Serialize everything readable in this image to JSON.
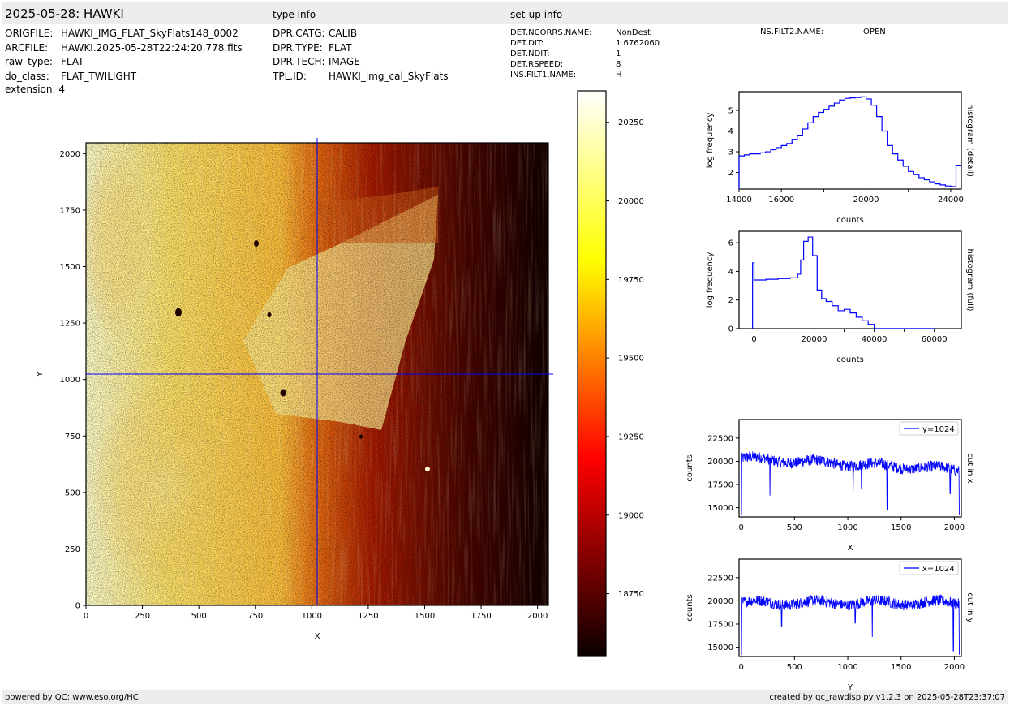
{
  "header": {
    "title": "2025-05-28: HAWKI",
    "type_info_title": "type info",
    "setup_info_title": "set-up info"
  },
  "file_info": [
    {
      "key": "ORIGFILE:",
      "value": "HAWKI_IMG_FLAT_SkyFlats148_0002"
    },
    {
      "key": "ARCFILE:",
      "value": "HAWKI.2025-05-28T22:24:20.778.fits"
    },
    {
      "key": "raw_type:",
      "value": "FLAT"
    },
    {
      "key": "do_class:",
      "value": "FLAT_TWILIGHT"
    },
    {
      "key": "extension:",
      "value": "4"
    }
  ],
  "type_info": [
    {
      "key": "DPR.CATG:",
      "value": "CALIB"
    },
    {
      "key": "DPR.TYPE:",
      "value": "FLAT"
    },
    {
      "key": "DPR.TECH:",
      "value": "IMAGE"
    },
    {
      "key": "TPL.ID:",
      "value": "HAWKI_img_cal_SkyFlats"
    }
  ],
  "setup_info": [
    {
      "key": "DET.NCORRS.NAME:",
      "value": "NonDest"
    },
    {
      "key": "DET.DIT:",
      "value": "1.6762060"
    },
    {
      "key": "DET.NDIT:",
      "value": "1"
    },
    {
      "key": "DET.RSPEED:",
      "value": "8"
    },
    {
      "key": "INS.FILT1.NAME:",
      "value": "H"
    }
  ],
  "setup_info_2": [
    {
      "key": "INS.FILT2.NAME:",
      "value": "OPEN"
    }
  ],
  "footer": {
    "left": "powered by QC: www.eso.org/HC",
    "right": "created by qc_rawdisp.py v1.2.3 on 2025-05-28T23:37:07"
  },
  "colors": {
    "series": "#0000ff",
    "crosshair": "#0000ff",
    "band": "#ececec"
  },
  "chart_data": [
    {
      "type": "heatmap",
      "xlabel": "X",
      "ylabel": "Y",
      "xlim": [
        0,
        2048
      ],
      "ylim": [
        0,
        2048
      ],
      "xticks": [
        0,
        250,
        500,
        750,
        1000,
        1250,
        1500,
        1750,
        2000
      ],
      "yticks": [
        0,
        250,
        500,
        750,
        1000,
        1250,
        1500,
        1750,
        2000
      ],
      "crosshair": {
        "x": 1024,
        "y": 1024
      },
      "colormap": "hot",
      "colorbar": {
        "range": [
          18550,
          20350
        ],
        "ticks": [
          18750,
          19000,
          19250,
          19500,
          19750,
          20000,
          20250
        ]
      }
    },
    {
      "type": "line",
      "step": true,
      "xlabel": "counts",
      "ylabel": "log frequency",
      "side_label": "histogram (detail)",
      "xlim": [
        14000,
        24500
      ],
      "ylim": [
        1.2,
        5.9
      ],
      "xticks": [
        14000,
        16000,
        20000,
        24000
      ],
      "xtick_minor": [
        18000,
        22000
      ],
      "yticks": [
        2,
        3,
        4,
        5
      ],
      "x": [
        14000,
        14250,
        14500,
        14750,
        15000,
        15250,
        15500,
        15750,
        16000,
        16250,
        16500,
        16750,
        17000,
        17250,
        17500,
        17750,
        18000,
        18250,
        18500,
        18750,
        19000,
        19250,
        19500,
        19750,
        20000,
        20250,
        20500,
        20750,
        21000,
        21250,
        21500,
        21750,
        22000,
        22250,
        22500,
        22750,
        23000,
        23250,
        23500,
        23750,
        24000,
        24250,
        24500
      ],
      "y": [
        2.8,
        2.85,
        2.9,
        2.9,
        2.95,
        3.0,
        3.1,
        3.2,
        3.3,
        3.4,
        3.6,
        3.8,
        4.1,
        4.4,
        4.7,
        4.9,
        5.05,
        5.2,
        5.35,
        5.5,
        5.58,
        5.6,
        5.62,
        5.65,
        5.55,
        5.25,
        4.7,
        4.0,
        3.3,
        2.9,
        2.6,
        2.3,
        2.05,
        1.9,
        1.75,
        1.65,
        1.55,
        1.45,
        1.4,
        1.35,
        1.32,
        2.35,
        2.35
      ]
    },
    {
      "type": "line",
      "step": true,
      "xlabel": "counts",
      "ylabel": "log frequency",
      "side_label": "histogram (full)",
      "xlim": [
        -5000,
        69000
      ],
      "ylim": [
        0,
        6.8
      ],
      "xticks": [
        0,
        20000,
        40000,
        60000
      ],
      "xtick_minor": [
        10000,
        30000,
        50000
      ],
      "yticks": [
        0,
        2,
        4,
        6
      ],
      "x": [
        -500,
        0,
        1500,
        4000,
        6000,
        8000,
        10000,
        12000,
        13500,
        14500,
        15500,
        16500,
        18000,
        19500,
        21000,
        22500,
        24000,
        26000,
        28000,
        30000,
        32000,
        34000,
        36000,
        38000,
        40000,
        60000
      ],
      "y": [
        4.6,
        3.4,
        3.4,
        3.45,
        3.45,
        3.5,
        3.5,
        3.55,
        3.55,
        3.8,
        4.8,
        6.1,
        6.4,
        5.1,
        2.7,
        2.1,
        1.9,
        1.6,
        1.25,
        1.35,
        1.1,
        0.8,
        0.55,
        0.3,
        0,
        0
      ]
    },
    {
      "type": "line",
      "xlabel": "X",
      "ylabel": "counts",
      "side_label": "cut in x",
      "series": [
        {
          "name": "y=1024"
        }
      ],
      "xlim": [
        -20,
        2065
      ],
      "ylim": [
        14000,
        24500
      ],
      "xticks": [
        0,
        500,
        1000,
        1500,
        2000
      ],
      "yticks": [
        15000,
        17500,
        20000,
        22500
      ]
    },
    {
      "type": "line",
      "xlabel": "Y",
      "ylabel": "counts",
      "side_label": "cut in y",
      "series": [
        {
          "name": "x=1024"
        }
      ],
      "xlim": [
        -20,
        2065
      ],
      "ylim": [
        14000,
        24500
      ],
      "xticks": [
        0,
        500,
        1000,
        1500,
        2000
      ],
      "yticks": [
        15000,
        17500,
        20000,
        22500
      ]
    }
  ]
}
